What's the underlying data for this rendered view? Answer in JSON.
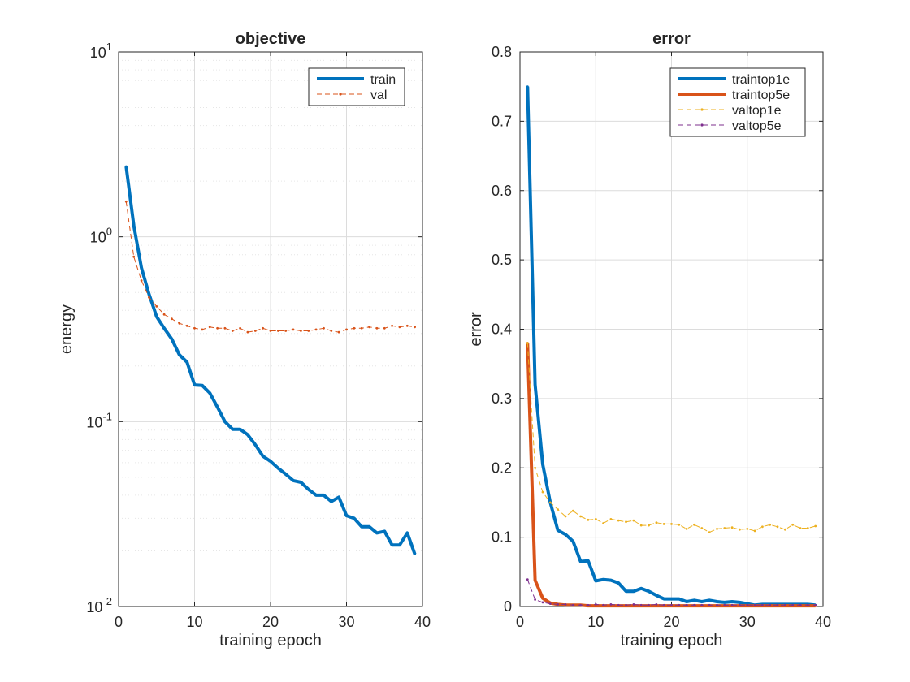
{
  "colors": {
    "blue": "#0072BD",
    "orange": "#D95319",
    "yellow": "#EDB120",
    "purple": "#7E2F8E",
    "grid": "#dcdcdc",
    "axis": "#262626"
  },
  "chart_data": [
    {
      "type": "line",
      "title": "objective",
      "xlabel": "training epoch",
      "ylabel": "energy",
      "xlim": [
        0,
        40
      ],
      "ylim": [
        0.01,
        10
      ],
      "yscale": "log",
      "grid": true,
      "minor_grid": true,
      "legend_position": "top-right",
      "xticks": [
        "0",
        "10",
        "20",
        "30",
        "40"
      ],
      "yticks": [
        {
          "base": "10",
          "exp": "-2",
          "value": 0.01
        },
        {
          "base": "10",
          "exp": "-1",
          "value": 0.1
        },
        {
          "base": "10",
          "exp": "0",
          "value": 1
        },
        {
          "base": "10",
          "exp": "1",
          "value": 10
        }
      ],
      "series": [
        {
          "name": "train",
          "color": "blue",
          "style": "solid-thick",
          "x": [
            1,
            2,
            3,
            4,
            5,
            6,
            7,
            8,
            9,
            10,
            11,
            12,
            13,
            14,
            15,
            16,
            17,
            18,
            19,
            20,
            21,
            22,
            23,
            24,
            25,
            26,
            27,
            28,
            29,
            30,
            31,
            32,
            33,
            34,
            35,
            36,
            37,
            38,
            39
          ],
          "values": [
            2.4,
            1.15,
            0.68,
            0.49,
            0.37,
            0.32,
            0.28,
            0.23,
            0.21,
            0.158,
            0.157,
            0.143,
            0.12,
            0.1,
            0.091,
            0.091,
            0.085,
            0.075,
            0.065,
            0.061,
            0.056,
            0.052,
            0.048,
            0.047,
            0.043,
            0.04,
            0.04,
            0.037,
            0.039,
            0.031,
            0.03,
            0.027,
            0.027,
            0.025,
            0.0255,
            0.0215,
            0.0215,
            0.025,
            0.0192
          ]
        },
        {
          "name": "val",
          "color": "orange",
          "style": "dashed-dots",
          "x": [
            1,
            2,
            3,
            4,
            5,
            6,
            7,
            8,
            9,
            10,
            11,
            12,
            13,
            14,
            15,
            16,
            17,
            18,
            19,
            20,
            21,
            22,
            23,
            24,
            25,
            26,
            27,
            28,
            29,
            30,
            31,
            32,
            33,
            34,
            35,
            36,
            37,
            38,
            39
          ],
          "values": [
            1.55,
            0.78,
            0.58,
            0.47,
            0.42,
            0.38,
            0.36,
            0.34,
            0.33,
            0.32,
            0.315,
            0.325,
            0.32,
            0.32,
            0.31,
            0.32,
            0.305,
            0.31,
            0.32,
            0.31,
            0.31,
            0.31,
            0.315,
            0.31,
            0.31,
            0.315,
            0.32,
            0.31,
            0.305,
            0.315,
            0.32,
            0.32,
            0.325,
            0.32,
            0.32,
            0.33,
            0.325,
            0.33,
            0.325
          ]
        }
      ]
    },
    {
      "type": "line",
      "title": "error",
      "xlabel": "training epoch",
      "ylabel": "error",
      "xlim": [
        0,
        40
      ],
      "ylim": [
        0,
        0.8
      ],
      "yscale": "linear",
      "grid": true,
      "legend_position": "top-right",
      "xticks": [
        "0",
        "10",
        "20",
        "30",
        "40"
      ],
      "yticks": [
        "0",
        "0.1",
        "0.2",
        "0.3",
        "0.4",
        "0.5",
        "0.6",
        "0.7",
        "0.8"
      ],
      "series": [
        {
          "name": "traintop1e",
          "color": "blue",
          "style": "solid-thick",
          "x": [
            1,
            2,
            3,
            4,
            5,
            6,
            7,
            8,
            9,
            10,
            11,
            12,
            13,
            14,
            15,
            16,
            17,
            18,
            19,
            20,
            21,
            22,
            23,
            24,
            25,
            26,
            27,
            28,
            29,
            30,
            31,
            32,
            33,
            34,
            35,
            36,
            37,
            38,
            39
          ],
          "values": [
            0.75,
            0.32,
            0.205,
            0.15,
            0.11,
            0.104,
            0.094,
            0.065,
            0.066,
            0.037,
            0.039,
            0.038,
            0.034,
            0.022,
            0.022,
            0.026,
            0.022,
            0.016,
            0.011,
            0.011,
            0.011,
            0.007,
            0.009,
            0.007,
            0.009,
            0.007,
            0.006,
            0.007,
            0.006,
            0.004,
            0.002,
            0.003,
            0.003,
            0.003,
            0.003,
            0.003,
            0.003,
            0.003,
            0.002
          ]
        },
        {
          "name": "traintop5e",
          "color": "orange",
          "style": "solid-thick",
          "x": [
            1,
            2,
            3,
            4,
            5,
            6,
            7,
            8,
            9,
            10,
            11,
            12,
            13,
            14,
            15,
            16,
            17,
            18,
            19,
            20,
            21,
            22,
            23,
            24,
            25,
            26,
            27,
            28,
            29,
            30,
            31,
            32,
            33,
            34,
            35,
            36,
            37,
            38,
            39
          ],
          "values": [
            0.38,
            0.038,
            0.012,
            0.005,
            0.003,
            0.002,
            0.002,
            0.002,
            0.001,
            0.001,
            0.001,
            0.001,
            0.001,
            0.001,
            0.001,
            0.001,
            0.001,
            0.001,
            0.001,
            0.001,
            0.001,
            0.001,
            0.001,
            0.001,
            0.001,
            0.001,
            0.001,
            0.001,
            0.001,
            0.001,
            0.001,
            0.001,
            0.001,
            0.001,
            0.001,
            0.001,
            0.001,
            0.001,
            0.001
          ]
        },
        {
          "name": "valtop1e",
          "color": "yellow",
          "style": "dashed-dots",
          "x": [
            1,
            2,
            3,
            4,
            5,
            6,
            7,
            8,
            9,
            10,
            11,
            12,
            13,
            14,
            15,
            16,
            17,
            18,
            19,
            20,
            21,
            22,
            23,
            24,
            25,
            26,
            27,
            28,
            29,
            30,
            31,
            32,
            33,
            34,
            35,
            36,
            37,
            38,
            39
          ],
          "values": [
            0.38,
            0.2,
            0.165,
            0.15,
            0.14,
            0.13,
            0.138,
            0.13,
            0.125,
            0.126,
            0.12,
            0.126,
            0.124,
            0.122,
            0.124,
            0.117,
            0.117,
            0.121,
            0.119,
            0.119,
            0.118,
            0.112,
            0.118,
            0.113,
            0.107,
            0.112,
            0.113,
            0.114,
            0.111,
            0.112,
            0.109,
            0.115,
            0.118,
            0.115,
            0.111,
            0.118,
            0.113,
            0.113,
            0.116
          ]
        },
        {
          "name": "valtop5e",
          "color": "purple",
          "style": "dashed-dots",
          "x": [
            1,
            2,
            3,
            4,
            5,
            6,
            7,
            8,
            9,
            10,
            11,
            12,
            13,
            14,
            15,
            16,
            17,
            18,
            19,
            20,
            21,
            22,
            23,
            24,
            25,
            26,
            27,
            28,
            29,
            30,
            31,
            32,
            33,
            34,
            35,
            36,
            37,
            38,
            39
          ],
          "values": [
            0.039,
            0.01,
            0.006,
            0.004,
            0.003,
            0.003,
            0.002,
            0.002,
            0.002,
            0.003,
            0.002,
            0.003,
            0.002,
            0.002,
            0.003,
            0.002,
            0.002,
            0.003,
            0.002,
            0.002,
            0.002,
            0.002,
            0.002,
            0.002,
            0.002,
            0.002,
            0.002,
            0.002,
            0.002,
            0.002,
            0.002,
            0.002,
            0.002,
            0.002,
            0.002,
            0.002,
            0.002,
            0.002,
            0.002
          ]
        }
      ]
    }
  ]
}
